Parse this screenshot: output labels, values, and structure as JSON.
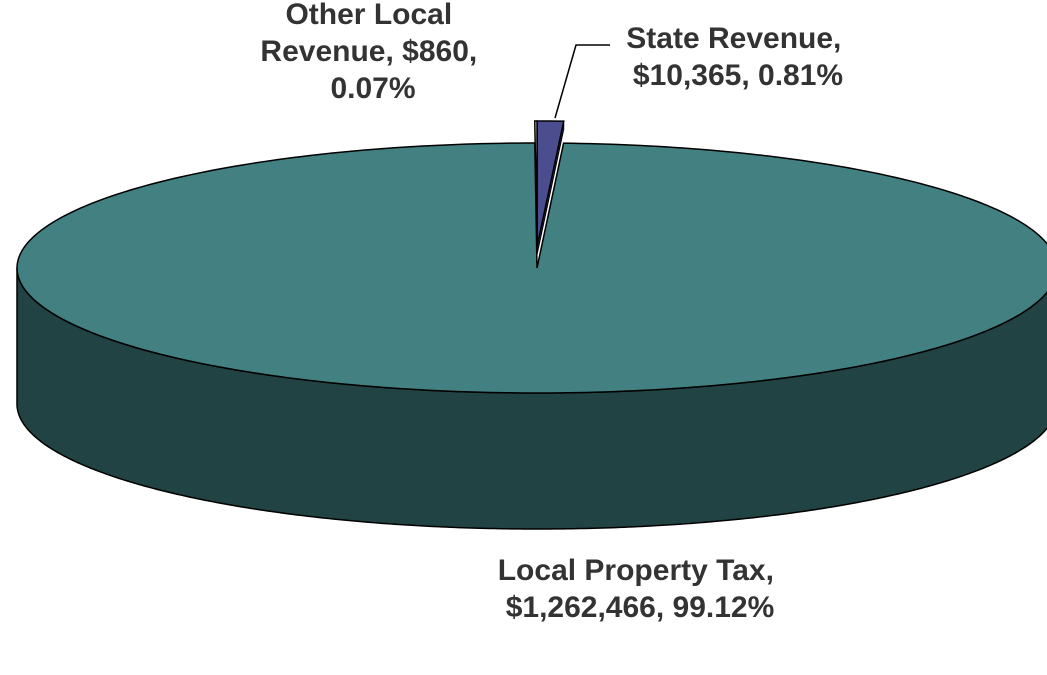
{
  "chart_data": {
    "type": "pie3d",
    "categories": [
      "State Revenue",
      "Local Property Tax",
      "Other Local Revenue"
    ],
    "values": [
      10365,
      1262466,
      860
    ],
    "labels": [
      "State Revenue, $10,365, 0.81%",
      "Local Property Tax, $1,262,466, 99.12%",
      "Other Local Revenue, $860, 0.07%"
    ],
    "colors": [
      "#4b4d8e",
      "#428081",
      "#ffffff"
    ]
  }
}
